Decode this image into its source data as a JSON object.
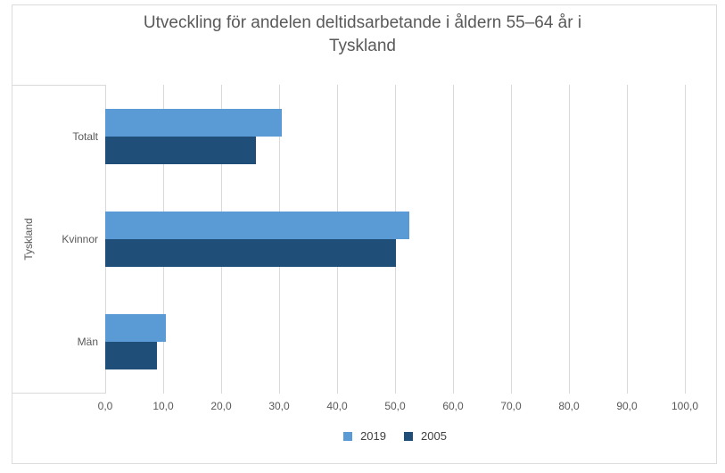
{
  "chart_data": {
    "type": "bar",
    "orientation": "horizontal",
    "title": "Utveckling för andelen deltidsarbetande i åldern 55–64 år i Tyskland",
    "title_lines": [
      "Utveckling för andelen deltidsarbetande i åldern 55–64 år i",
      "Tyskland"
    ],
    "group_label": "Tyskland",
    "categories": [
      "Totalt",
      "Kvinnor",
      "Män"
    ],
    "series": [
      {
        "name": "2019",
        "color": "#5B9BD5",
        "values": [
          30.5,
          52.5,
          10.5
        ]
      },
      {
        "name": "2005",
        "color": "#1F4E79",
        "values": [
          26.0,
          50.2,
          8.9
        ]
      }
    ],
    "xlim": [
      0,
      100
    ],
    "x_tick_labels": [
      "0,0",
      "10,0",
      "20,0",
      "30,0",
      "40,0",
      "50,0",
      "60,0",
      "70,0",
      "80,0",
      "90,0",
      "100,0"
    ],
    "x_tick_step": 10,
    "grid": "vertical",
    "legend_position": "bottom",
    "colors": {
      "gridline": "#D9D9D9",
      "border": "#DCDCDC",
      "axis_text": "#595959",
      "legend_text": "#404040",
      "title_text": "#595959"
    }
  }
}
